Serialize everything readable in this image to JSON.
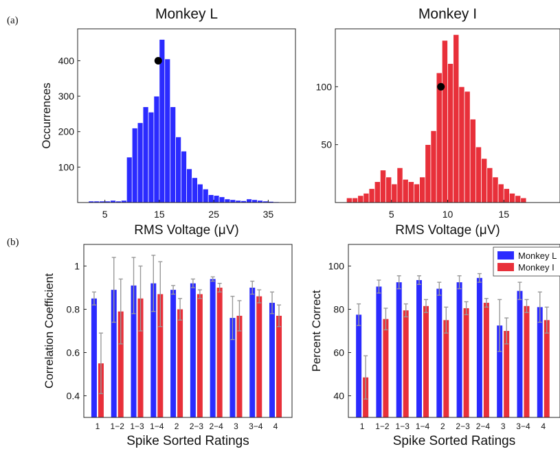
{
  "panel_labels": {
    "a": "(a)",
    "b": "(b)"
  },
  "colors": {
    "monkey_l": "#2b2bff",
    "monkey_i": "#e8303a",
    "errorbar": "#999999",
    "marker": "#000000"
  },
  "chart_data": [
    {
      "type": "bar",
      "title": "Monkey L",
      "xlabel": "RMS Voltage (μV)",
      "ylabel": "Occurrences",
      "xlim": [
        0,
        40
      ],
      "ylim": [
        0,
        490
      ],
      "xticks": [
        5,
        15,
        25,
        35
      ],
      "yticks": [
        100,
        200,
        300,
        400
      ],
      "bin_width": 1,
      "bin_starts": [
        2,
        3,
        4,
        5,
        6,
        7,
        8,
        9,
        10,
        11,
        12,
        13,
        14,
        15,
        16,
        17,
        18,
        19,
        20,
        21,
        22,
        23,
        24,
        25,
        26,
        27,
        28,
        29,
        30,
        31,
        32,
        33,
        34,
        35,
        36,
        37,
        38
      ],
      "values": [
        4,
        4,
        4,
        4,
        6,
        4,
        6,
        128,
        210,
        225,
        270,
        255,
        300,
        460,
        405,
        270,
        185,
        145,
        95,
        70,
        52,
        38,
        22,
        20,
        16,
        10,
        8,
        6,
        5,
        10,
        8,
        6,
        4,
        3,
        2,
        1,
        1
      ],
      "marker": {
        "x": 14.8,
        "y": 400
      },
      "color": "#2b2bff"
    },
    {
      "type": "bar",
      "title": "Monkey I",
      "xlabel": "RMS Voltage (μV)",
      "ylabel": "",
      "xlim": [
        0,
        20
      ],
      "ylim": [
        0,
        150
      ],
      "xticks": [
        5,
        10,
        15
      ],
      "yticks": [
        50,
        100
      ],
      "bin_width": 0.5,
      "bin_starts": [
        1.0,
        1.5,
        2.0,
        2.5,
        3.0,
        3.5,
        4.0,
        4.5,
        5.0,
        5.5,
        6.0,
        6.5,
        7.0,
        7.5,
        8.0,
        8.5,
        9.0,
        9.5,
        10.0,
        10.5,
        11.0,
        11.5,
        12.0,
        12.5,
        13.0,
        13.5,
        14.0,
        14.5,
        15.0,
        15.5,
        16.0,
        16.5
      ],
      "values": [
        4,
        4,
        6,
        8,
        12,
        18,
        28,
        22,
        16,
        30,
        20,
        18,
        16,
        22,
        50,
        62,
        112,
        140,
        120,
        145,
        100,
        96,
        72,
        48,
        38,
        30,
        22,
        16,
        12,
        8,
        6,
        4
      ],
      "marker": {
        "x": 9.4,
        "y": 100
      },
      "color": "#e8303a"
    },
    {
      "type": "bar",
      "title": "",
      "xlabel": "Spike Sorted Ratings",
      "ylabel": "Correlation Coefficient",
      "ylim": [
        0.3,
        1.1
      ],
      "yticks": [
        0.4,
        0.6,
        0.8,
        1
      ],
      "ytick_labels": [
        "0.4",
        "0.6",
        "0.8",
        "1"
      ],
      "categories": [
        "1",
        "1−2",
        "1−3",
        "1−4",
        "2",
        "2−3",
        "2−4",
        "3",
        "3−4",
        "4"
      ],
      "series": [
        {
          "name": "Monkey L",
          "values": [
            0.85,
            0.89,
            0.91,
            0.92,
            0.89,
            0.92,
            0.94,
            0.76,
            0.9,
            0.83
          ],
          "errors": [
            0.03,
            0.15,
            0.13,
            0.13,
            0.02,
            0.02,
            0.01,
            0.1,
            0.03,
            0.05
          ],
          "color": "#2b2bff"
        },
        {
          "name": "Monkey I",
          "values": [
            0.55,
            0.79,
            0.85,
            0.87,
            0.8,
            0.87,
            0.9,
            0.77,
            0.86,
            0.77
          ],
          "errors": [
            0.14,
            0.15,
            0.15,
            0.15,
            0.05,
            0.02,
            0.02,
            0.07,
            0.03,
            0.05
          ],
          "color": "#e8303a"
        }
      ]
    },
    {
      "type": "bar",
      "title": "",
      "xlabel": "Spike Sorted Ratings",
      "ylabel": "Percent Correct",
      "ylim": [
        30,
        110
      ],
      "yticks": [
        40,
        60,
        80,
        100
      ],
      "ytick_labels": [
        "40",
        "60",
        "80",
        "100"
      ],
      "categories": [
        "1",
        "1−2",
        "1−3",
        "1−4",
        "2",
        "2−3",
        "2−4",
        "3",
        "3−4",
        "4"
      ],
      "legend": {
        "placement": "top-right",
        "entries": [
          "Monkey L",
          "Monkey I"
        ]
      },
      "series": [
        {
          "name": "Monkey L",
          "values": [
            77.5,
            90.5,
            92.5,
            93.5,
            89.5,
            92.5,
            94.5,
            72.5,
            88.5,
            81
          ],
          "errors": [
            5,
            3,
            3,
            2,
            3,
            3,
            2,
            12,
            4,
            7
          ],
          "color": "#2b2bff"
        },
        {
          "name": "Monkey I",
          "values": [
            48.5,
            75.5,
            79.5,
            81.5,
            75,
            80.5,
            83,
            70,
            81.5,
            75
          ],
          "errors": [
            10,
            5,
            3,
            3,
            6,
            3,
            2,
            6,
            3,
            6
          ],
          "color": "#e8303a"
        }
      ]
    }
  ]
}
